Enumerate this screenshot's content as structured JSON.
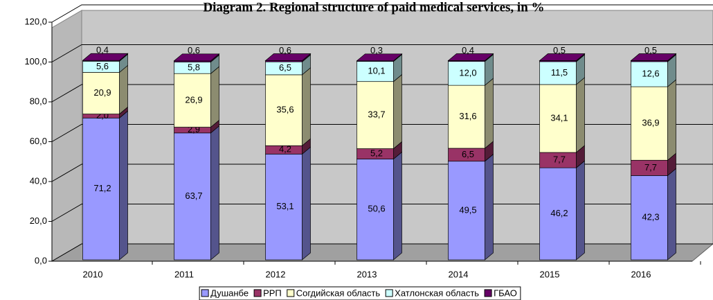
{
  "chart_data": {
    "type": "stacked-bar-3d",
    "title": "Diagram 2. Regional structure of paid medical services, in %",
    "categories": [
      "2010",
      "2011",
      "2012",
      "2013",
      "2014",
      "2015",
      "2016"
    ],
    "series": [
      {
        "name": "Душанбе",
        "color": "#9999ff",
        "values": [
          71.2,
          63.7,
          53.1,
          50.6,
          49.5,
          46.2,
          42.3
        ],
        "value_labels": [
          "71,2",
          "63,7",
          "53,1",
          "50,6",
          "49,5",
          "46,2",
          "42,3"
        ]
      },
      {
        "name": "РРП",
        "color": "#993366",
        "values": [
          2.0,
          2.9,
          4.2,
          5.2,
          6.5,
          7.7,
          7.7
        ],
        "value_labels": [
          "2,0",
          "2,9",
          "4,2",
          "5,2",
          "6,5",
          "7,7",
          "7,7"
        ]
      },
      {
        "name": "Согдийская область",
        "color": "#ffffcc",
        "values": [
          20.9,
          26.9,
          35.6,
          33.7,
          31.6,
          34.1,
          36.9
        ],
        "value_labels": [
          "20,9",
          "26,9",
          "35,6",
          "33,7",
          "31,6",
          "34,1",
          "36,9"
        ]
      },
      {
        "name": "Хатлонская область",
        "color": "#ccffff",
        "values": [
          5.6,
          5.8,
          6.5,
          10.1,
          12.0,
          11.5,
          12.6
        ],
        "value_labels": [
          "5,6",
          "5,8",
          "6,5",
          "10,1",
          "12,0",
          "11,5",
          "12,6"
        ]
      },
      {
        "name": "ГБАО",
        "color": "#660066",
        "values": [
          0.4,
          0.6,
          0.6,
          0.3,
          0.4,
          0.5,
          0.5
        ],
        "value_labels": [
          "0,4",
          "0,6",
          "0,6",
          "0,3",
          "0,4",
          "0,5",
          "0,5"
        ]
      }
    ],
    "ylim": [
      0,
      120
    ],
    "yticks": [
      {
        "value": 0,
        "label": "0,0"
      },
      {
        "value": 20,
        "label": "20,0"
      },
      {
        "value": 40,
        "label": "40,0"
      },
      {
        "value": 60,
        "label": "60,0"
      },
      {
        "value": 80,
        "label": "80,0"
      },
      {
        "value": 100,
        "label": "100,0"
      },
      {
        "value": 120,
        "label": "120,0"
      }
    ],
    "grid": true,
    "legend": "bottom"
  }
}
